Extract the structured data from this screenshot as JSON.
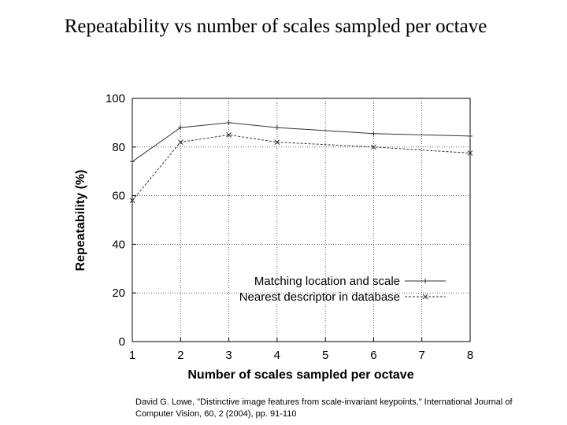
{
  "slide": {
    "title": "Repeatability vs number of scales sampled per octave",
    "citation": "David G. Lowe, \"Distinctive image features from scale-invariant keypoints,\" International Journal of Computer Vision, 60, 2 (2004), pp. 91-110"
  },
  "chart_data": {
    "type": "line",
    "title": "",
    "xlabel": "Number of scales sampled per octave",
    "ylabel": "Repeatability (%)",
    "x": [
      1,
      2,
      3,
      4,
      5,
      6,
      7,
      8
    ],
    "xlim": [
      1,
      8
    ],
    "ylim": [
      0,
      100
    ],
    "xticks": [
      1,
      2,
      3,
      4,
      5,
      6,
      7,
      8
    ],
    "yticks": [
      0,
      20,
      40,
      60,
      80,
      100
    ],
    "grid": true,
    "legend_position": "lower-right",
    "series": [
      {
        "name": "Matching location and scale",
        "x": [
          1,
          2,
          3,
          4,
          6,
          8
        ],
        "values": [
          74,
          88,
          90,
          88,
          85.5,
          84.5
        ],
        "marker": "+",
        "line_style": "solid",
        "color": "#333333"
      },
      {
        "name": "Nearest descriptor in database",
        "x": [
          1,
          2,
          3,
          4,
          6,
          8
        ],
        "values": [
          58,
          82,
          85,
          82,
          80,
          77.5
        ],
        "marker": "x",
        "line_style": "dashed",
        "color": "#333333"
      }
    ]
  }
}
